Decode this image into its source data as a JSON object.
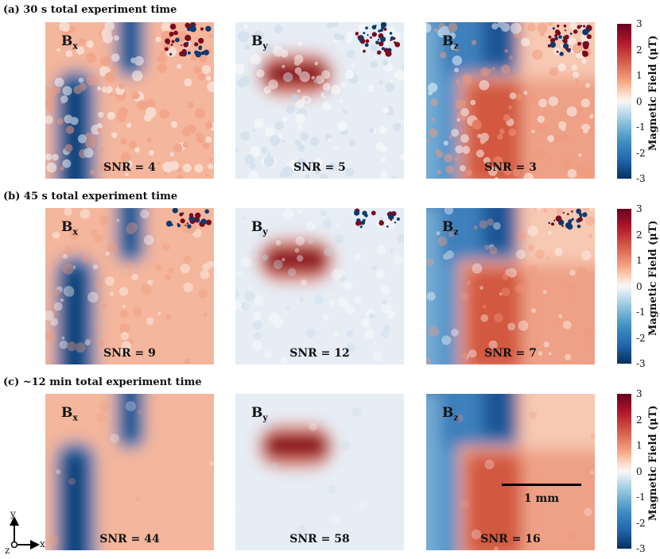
{
  "rows": [
    {
      "title": "(a) 30 s total experiment time",
      "snr": [
        "SNR = 4",
        "SNR = 5",
        "SNR = 3"
      ]
    },
    {
      "title": "(b) 45 s total experiment time",
      "snr": [
        "SNR = 9",
        "SNR = 12",
        "SNR = 7"
      ]
    },
    {
      "title": "(c) ~12 min total experiment time",
      "snr": [
        "SNR = 44",
        "SNR = 58",
        "SNR = 16"
      ]
    }
  ],
  "components": {
    "b": "B",
    "x": "x",
    "y": "y",
    "z": "z"
  },
  "colorbar": {
    "label": "Magnetic Field (μT)",
    "ticks": [
      "3",
      "2",
      "1",
      "0",
      "-1",
      "-2",
      "-3"
    ],
    "range": [
      -3,
      3
    ]
  },
  "scalebar": {
    "label": "1 mm"
  },
  "axes": {
    "y": "y",
    "x": "x",
    "z": "z"
  },
  "colors": {
    "positive": "#b2182b",
    "negative": "#2166ac",
    "neutral": "#f7f7f7"
  }
}
